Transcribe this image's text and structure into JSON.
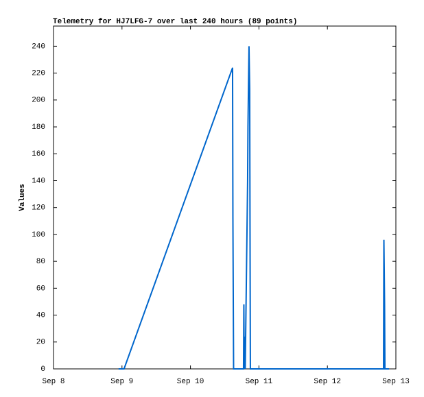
{
  "chart_data": {
    "type": "line",
    "title": "Telemetry for HJ7LFG-7 over last 240 hours (89 points)",
    "y_label": "Values",
    "x": [
      0.95,
      1.03,
      2.615,
      2.62,
      2.63,
      2.775,
      2.78,
      2.785,
      2.795,
      2.8,
      2.815,
      2.825,
      2.835,
      2.84,
      2.85,
      2.855,
      2.865,
      2.875,
      4.82,
      4.825,
      4.835,
      4.84,
      4.9
    ],
    "series": [
      {
        "name": "Values",
        "color": "#0066cc",
        "values": [
          0,
          0,
          224,
          112,
          0,
          0,
          48,
          0,
          24,
          0,
          60,
          100,
          140,
          180,
          220,
          240,
          208,
          0,
          0,
          96,
          48,
          0,
          0
        ]
      }
    ],
    "xlim": [
      0,
      5
    ],
    "xticks": [
      {
        "value": 0,
        "label": "Sep 8"
      },
      {
        "value": 1,
        "label": "Sep 9"
      },
      {
        "value": 2,
        "label": "Sep 10"
      },
      {
        "value": 3,
        "label": "Sep 11"
      },
      {
        "value": 4,
        "label": "Sep 12"
      },
      {
        "value": 5,
        "label": "Sep 13"
      }
    ],
    "ylim": [
      0,
      255
    ],
    "yticks": [
      0,
      20,
      40,
      60,
      80,
      100,
      120,
      140,
      160,
      180,
      200,
      220,
      240
    ]
  }
}
